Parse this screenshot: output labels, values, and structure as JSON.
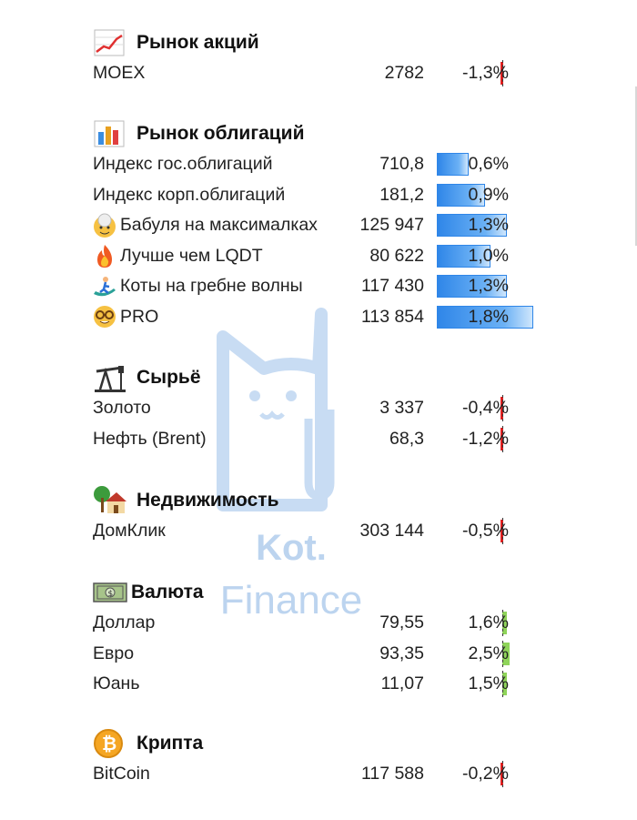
{
  "sections": {
    "stocks": {
      "title": "Рынок акций",
      "icon": "chart-up-icon",
      "rows": [
        {
          "name": "MOEX",
          "value": "2782",
          "change": "-1,3%",
          "change_num": -1.3
        }
      ]
    },
    "bonds": {
      "title": "Рынок облигаций",
      "icon": "bar-chart-icon",
      "rows": [
        {
          "name": "Индекс гос.облигаций",
          "value": "710,8",
          "change": "0,6%",
          "change_num": 0.6
        },
        {
          "name": "Индекс корп.облигаций",
          "value": "181,2",
          "change": "0,9%",
          "change_num": 0.9
        },
        {
          "name": "Бабуля на максималках",
          "value": "125 947",
          "change": "1,3%",
          "change_num": 1.3,
          "icon": "grandma-icon"
        },
        {
          "name": "Лучше чем LQDT",
          "value": "80 622",
          "change": "1,0%",
          "change_num": 1.0,
          "icon": "fire-icon"
        },
        {
          "name": "Коты на гребне волны",
          "value": "117 430",
          "change": "1,3%",
          "change_num": 1.3,
          "icon": "surfer-icon"
        },
        {
          "name": "PRO",
          "value": "113 854",
          "change": "1,8%",
          "change_num": 1.8,
          "icon": "nerd-face-icon"
        }
      ]
    },
    "commodities": {
      "title": "Сырьё",
      "icon": "oil-pump-icon",
      "rows": [
        {
          "name": "Золото",
          "value": "3 337",
          "change": "-0,4%",
          "change_num": -0.4
        },
        {
          "name": "Нефть (Brent)",
          "value": "68,3",
          "change": "-1,2%",
          "change_num": -1.2
        }
      ]
    },
    "realty": {
      "title": "Недвижимость",
      "icon": "house-icon",
      "rows": [
        {
          "name": "ДомКлик",
          "value": "303 144",
          "change": "-0,5%",
          "change_num": -0.5
        }
      ]
    },
    "currency": {
      "title": "Валюта",
      "icon": "banknote-icon",
      "rows": [
        {
          "name": "Доллар",
          "value": "79,55",
          "change": "1,6%",
          "change_num": 1.6
        },
        {
          "name": "Евро",
          "value": "93,35",
          "change": "2,5%",
          "change_num": 2.5
        },
        {
          "name": "Юань",
          "value": "11,07",
          "change": "1,5%",
          "change_num": 1.5
        }
      ]
    },
    "crypto": {
      "title": "Крипта",
      "icon": "bitcoin-icon",
      "rows": [
        {
          "name": "BitCoin",
          "value": "117 588",
          "change": "-0,2%",
          "change_num": -0.2
        }
      ]
    }
  },
  "watermark": {
    "line1": "Kot.",
    "line2": "Finance"
  },
  "colors": {
    "bar_blue": "#2f86e8",
    "bar_red": "#e02020",
    "bar_green": "#8fd45a"
  }
}
